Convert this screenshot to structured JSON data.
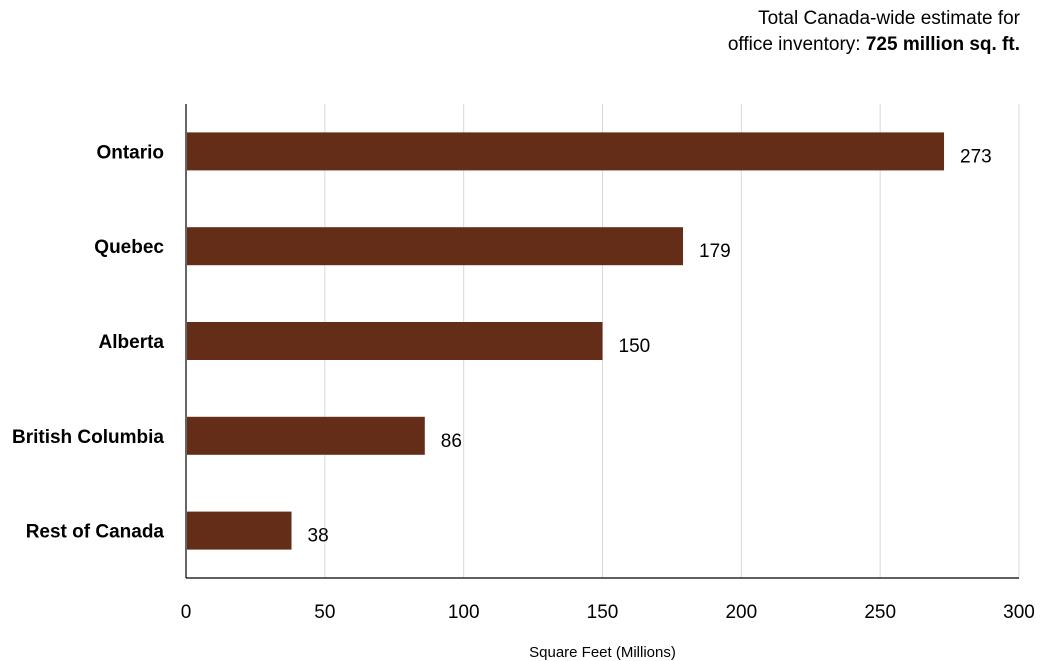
{
  "annotation": {
    "line1": "Total Canada-wide estimate for",
    "line2_prefix": "office inventory: ",
    "line2_bold": "725 million sq. ft."
  },
  "chart_data": {
    "type": "bar",
    "orientation": "horizontal",
    "categories": [
      "Ontario",
      "Quebec",
      "Alberta",
      "British Columbia",
      "Rest of Canada"
    ],
    "values": [
      273,
      179,
      150,
      86,
      38
    ],
    "value_labels": [
      "273",
      "179",
      "150",
      "86",
      "38"
    ],
    "xlabel": "Square Feet (Millions)",
    "ylabel": "",
    "xlim": [
      0,
      300
    ],
    "xticks": [
      0,
      50,
      100,
      150,
      200,
      250,
      300
    ],
    "xtick_labels": [
      "0",
      "50",
      "100",
      "150",
      "200",
      "250",
      "300"
    ],
    "grid": "vertical",
    "legend": "none",
    "bar_color": "#632d18",
    "grid_color": "#d9d9d9",
    "axis_color": "#000000"
  }
}
